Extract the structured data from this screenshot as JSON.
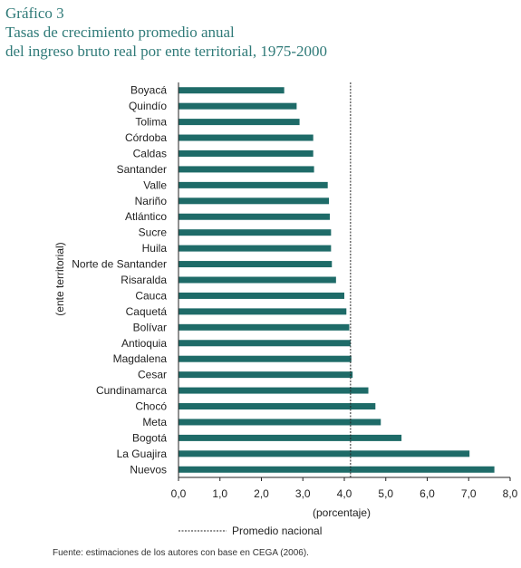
{
  "chart_data": {
    "type": "bar",
    "orientation": "horizontal",
    "title": "Gráfico 3",
    "subtitle_lines": [
      "Tasas de crecimiento promedio anual",
      "del ingreso bruto real por ente territorial, 1975-2000"
    ],
    "xlabel": "(porcentaje)",
    "ylabel": "(ente territorial)",
    "xlim": [
      0,
      8
    ],
    "x_ticks": [
      "0,0",
      "1,0",
      "2,0",
      "3,0",
      "4,0",
      "5,0",
      "6,0",
      "7,0",
      "8,0"
    ],
    "categories": [
      "Boyacá",
      "Quindío",
      "Tolima",
      "Córdoba",
      "Caldas",
      "Santander",
      "Valle",
      "Nariño",
      "Atlántico",
      "Sucre",
      "Huila",
      "Norte de Santander",
      "Risaralda",
      "Cauca",
      "Caquetá",
      "Bolívar",
      "Antioquia",
      "Magdalena",
      "Cesar",
      "Cundinamarca",
      "Chocó",
      "Meta",
      "Bogotá",
      "La Guajira",
      "Nuevos"
    ],
    "values": [
      2.55,
      2.85,
      2.92,
      3.25,
      3.25,
      3.27,
      3.6,
      3.63,
      3.65,
      3.68,
      3.68,
      3.7,
      3.8,
      4.0,
      4.05,
      4.12,
      4.15,
      4.17,
      4.2,
      4.58,
      4.75,
      4.88,
      5.38,
      7.02,
      7.62
    ],
    "reference_line": {
      "value": 4.15,
      "label": "Promedio nacional"
    },
    "bar_color": "#1e6b68",
    "title_color": "#2f7a78"
  },
  "source": "Fuente: estimaciones de los autores con base en CEGA (2006)."
}
